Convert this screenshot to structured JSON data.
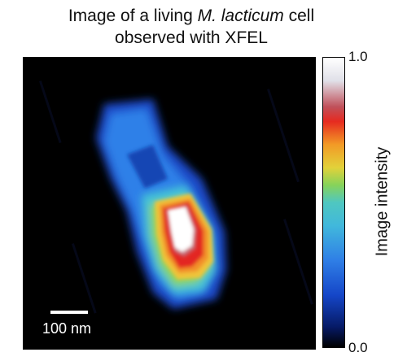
{
  "title": {
    "line1_before": "Image of a living ",
    "line1_italic": "M. lacticum",
    "line1_after": " cell",
    "line2": "observed with XFEL"
  },
  "scale_bar": {
    "label": "100 nm"
  },
  "colorbar": {
    "label": "Image intensity",
    "max_label": "1.0",
    "min_label": "0.0"
  }
}
